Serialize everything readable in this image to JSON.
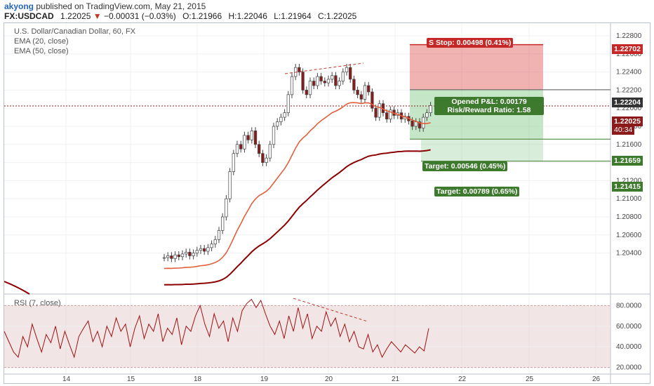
{
  "header": {
    "publisher": "akyong",
    "published_text": "published on TradingView.com, May 21, 2015",
    "symbol": "FX:USDCAD",
    "last": "1.22025",
    "change_arrow": "▼",
    "change": "−0.00031 (−0.03%)",
    "open_label": "O:",
    "open": "1.21966",
    "high_label": "H:",
    "high": "1.22046",
    "low_label": "L:",
    "low": "1.21964",
    "close_label": "C:",
    "close": "1.22025"
  },
  "legend": {
    "title": "U.S. Dollar/Canadian Dollar, 60, FX",
    "ema20": "EMA (20, close)",
    "ema50": "EMA (50, close)",
    "rsi": "RSI (7, close)"
  },
  "trade": {
    "stop": "Stop: 0.00498 (0.41%)",
    "stop_prefix": "S",
    "opened_pl": "Opened P&L: 0.00179",
    "rr": "Risk/Reward Ratio: 1.58",
    "rr_prefix": "P",
    "target1": "Target: 0.00546 (0.45%)",
    "target2": "Target: 0.00789 (0.65%)"
  },
  "price_tags": {
    "stop_price": "1.22702",
    "entry_price": "1.22204",
    "last_price": "1.22025",
    "countdown": "40:34",
    "target1_price": "1.21659",
    "target2_price": "1.21415"
  },
  "colors": {
    "up": "#26a69a",
    "down": "#c0392b",
    "candle": "#555555",
    "stop_zone": "#e57373",
    "target_zone": "#81c784",
    "ema20": "#e0603a",
    "ema50": "#8b0000",
    "rsi": "#a01010"
  },
  "chart_data": {
    "type": "candlestick",
    "price_axis": [
      "1.22800",
      "1.22600",
      "1.22400",
      "1.22200",
      "1.22000",
      "1.21800",
      "1.21600",
      "1.21400",
      "1.21200",
      "1.21000",
      "1.20800",
      "1.20600",
      "1.20400"
    ],
    "rsi_axis": [
      "80.0000",
      "60.0000",
      "40.0000",
      "20.0000"
    ],
    "x_ticks": [
      "14",
      "15",
      "18",
      "19",
      "20",
      "21",
      "22",
      "25",
      "26"
    ]
  }
}
